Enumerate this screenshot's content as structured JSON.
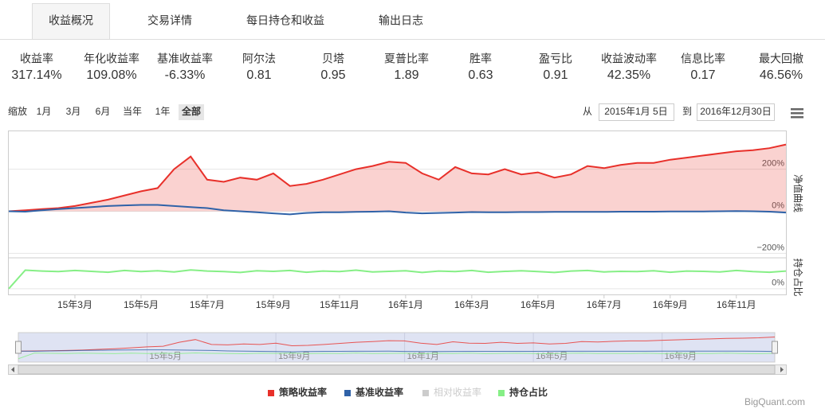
{
  "tabs": {
    "items": [
      "收益概况",
      "交易详情",
      "每日持仓和收益",
      "输出日志"
    ],
    "active": 0
  },
  "metrics": [
    {
      "name": "收益率",
      "value": "317.14%"
    },
    {
      "name": "年化收益率",
      "value": "109.08%"
    },
    {
      "name": "基准收益率",
      "value": "-6.33%"
    },
    {
      "name": "阿尔法",
      "value": "0.81"
    },
    {
      "name": "贝塔",
      "value": "0.95"
    },
    {
      "name": "夏普比率",
      "value": "1.89"
    },
    {
      "name": "胜率",
      "value": "0.63"
    },
    {
      "name": "盈亏比",
      "value": "0.91"
    },
    {
      "name": "收益波动率",
      "value": "42.35%"
    },
    {
      "name": "信息比率",
      "value": "0.17"
    },
    {
      "name": "最大回撤",
      "value": "46.56%"
    }
  ],
  "controls": {
    "zoom_label": "缩放",
    "zoom_buttons": [
      "1月",
      "3月",
      "6月",
      "当年",
      "1年",
      "全部"
    ],
    "zoom_active": 5,
    "from_label": "从",
    "from": "2015年1月 5日",
    "to_label": "到",
    "to": "2016年12月30日"
  },
  "chart_data": {
    "type": "line",
    "categories": [
      null,
      null,
      null,
      null,
      "15年3月",
      null,
      null,
      null,
      "15年5月",
      null,
      null,
      null,
      "15年7月",
      null,
      null,
      null,
      "15年9月",
      null,
      null,
      null,
      "15年11月",
      null,
      null,
      null,
      "16年1月",
      null,
      null,
      null,
      "16年3月",
      null,
      null,
      null,
      "16年5月",
      null,
      null,
      null,
      "16年7月",
      null,
      null,
      null,
      "16年9月",
      null,
      null,
      null,
      "16年11月",
      null,
      null,
      null
    ],
    "grid": true,
    "panes": [
      {
        "ylabel": "净值曲线",
        "ylim": [
          -210,
          380
        ],
        "yticks": [
          {
            "value": 200,
            "label": "200%"
          },
          {
            "value": 0,
            "label": "0%"
          },
          {
            "value": -200,
            "label": "−200%"
          }
        ],
        "series": [
          {
            "name": "策略收益率",
            "color": "#e8302a",
            "area": true,
            "values": [
              0,
              5,
              10,
              15,
              25,
              40,
              55,
              75,
              95,
              110,
              200,
              260,
              150,
              140,
              160,
              150,
              180,
              120,
              130,
              150,
              175,
              200,
              215,
              235,
              230,
              180,
              150,
              210,
              180,
              175,
              200,
              175,
              185,
              160,
              175,
              215,
              205,
              220,
              230,
              230,
              245,
              255,
              265,
              275,
              285,
              290,
              300,
              317.14
            ]
          },
          {
            "name": "基准收益率",
            "color": "#2f62a8",
            "values": [
              0,
              -2,
              5,
              10,
              15,
              20,
              25,
              28,
              30,
              30,
              25,
              20,
              15,
              5,
              0,
              -5,
              -10,
              -15,
              -8,
              -5,
              -5,
              -3,
              -2,
              0,
              -6,
              -10,
              -8,
              -6,
              -4,
              -5,
              -5,
              -4,
              -4,
              -3,
              -3,
              -3,
              -3,
              -2,
              -2,
              -2,
              -1,
              -1,
              -1,
              0,
              1,
              0,
              -2,
              -6.33
            ]
          }
        ]
      },
      {
        "ylabel": "持仓占比",
        "ylim": [
          -20,
          100
        ],
        "yticks": [
          {
            "value": 0,
            "label": "0%"
          }
        ],
        "series": [
          {
            "name": "持仓占比",
            "color": "#86ef86",
            "values": [
              0,
              65,
              62,
              60,
              64,
              61,
              58,
              64,
              60,
              63,
              59,
              66,
              62,
              60,
              57,
              63,
              61,
              64,
              58,
              62,
              60,
              65,
              59,
              61,
              63,
              57,
              62,
              60,
              64,
              58,
              61,
              63,
              60,
              57,
              62,
              64,
              59,
              61,
              60,
              63,
              58,
              62,
              61,
              59,
              64,
              60,
              58,
              62
            ]
          }
        ]
      }
    ],
    "hidden_series": [
      {
        "name": "相对收益率",
        "color": "#cccccc"
      }
    ],
    "navigator": {
      "xticks": [
        {
          "value": 8,
          "label": "15年5月"
        },
        {
          "value": 16,
          "label": "15年9月"
        },
        {
          "value": 24,
          "label": "16年1月"
        },
        {
          "value": 32,
          "label": "16年5月"
        },
        {
          "value": 40,
          "label": "16年9月"
        }
      ]
    }
  },
  "watermark": "BigQuant.com"
}
